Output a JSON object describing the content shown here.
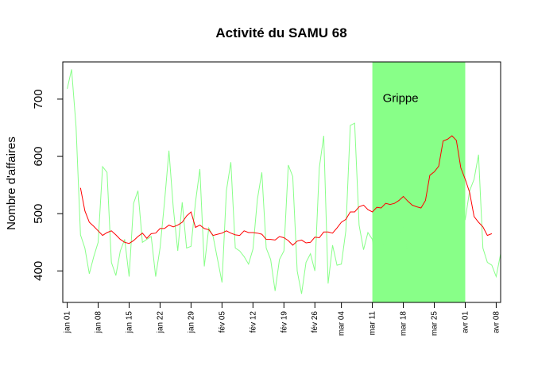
{
  "chart_data": {
    "type": "line",
    "title": "Activité du SAMU 68",
    "xlabel": "",
    "ylabel": "Nombre d'affaires",
    "ylim": [
      345,
      765
    ],
    "yticks": [
      400,
      500,
      600,
      700
    ],
    "x_start": "2009-12-31",
    "x_end": "2010-04-09",
    "x_ticks": [
      {
        "label": "jan 01",
        "date": "2010-01-01"
      },
      {
        "label": "jan 08",
        "date": "2010-01-08"
      },
      {
        "label": "jan 15",
        "date": "2010-01-15"
      },
      {
        "label": "jan 22",
        "date": "2010-01-22"
      },
      {
        "label": "jan 29",
        "date": "2010-01-29"
      },
      {
        "label": "fév 05",
        "date": "2010-02-05"
      },
      {
        "label": "fév 12",
        "date": "2010-02-12"
      },
      {
        "label": "fév 19",
        "date": "2010-02-19"
      },
      {
        "label": "fév 26",
        "date": "2010-02-26"
      },
      {
        "label": "mar 04",
        "date": "2010-03-04"
      },
      {
        "label": "mar 11",
        "date": "2010-03-11"
      },
      {
        "label": "mar 18",
        "date": "2010-03-18"
      },
      {
        "label": "mar 25",
        "date": "2010-03-25"
      },
      {
        "label": "avr 01",
        "date": "2010-04-01"
      },
      {
        "label": "avr 08",
        "date": "2010-04-08"
      }
    ],
    "highlight": {
      "label": "Grippe",
      "start": "2010-03-11",
      "end": "2010-04-01",
      "color": "#88ff88"
    },
    "series": [
      {
        "color": "#88ff88",
        "start": "2010-01-01",
        "values": [
          718,
          752,
          652,
          463,
          440,
          395,
          425,
          450,
          582,
          572,
          415,
          392,
          435,
          455,
          390,
          518,
          540,
          450,
          455,
          460,
          390,
          440,
          520,
          610,
          510,
          435,
          520,
          440,
          443,
          520,
          578,
          408,
          475,
          460,
          420,
          380,
          540,
          590,
          440,
          435,
          425,
          412,
          438,
          525,
          572,
          440,
          420,
          365,
          420,
          435,
          585,
          565,
          400,
          360,
          415,
          430,
          400,
          580,
          636,
          378,
          445,
          410,
          412,
          470,
          654,
          658,
          480,
          437,
          467,
          455,
          388,
          452,
          440,
          455,
          430,
          460,
          475,
          430,
          420,
          440,
          455,
          480,
          435,
          560,
          620,
          625,
          580,
          585,
          510,
          470,
          490,
          540,
          560,
          603,
          440,
          415,
          410,
          390,
          430
        ]
      },
      {
        "color": "#ff0000",
        "start": "2010-01-04",
        "values": [
          545,
          505,
          485,
          478,
          470,
          462,
          467,
          470,
          463,
          455,
          450,
          448,
          453,
          460,
          466,
          457,
          465,
          466,
          474,
          474,
          480,
          477,
          480,
          485,
          496,
          503,
          476,
          480,
          474,
          472,
          462,
          464,
          466,
          470,
          466,
          463,
          462,
          470,
          467,
          467,
          466,
          464,
          455,
          455,
          454,
          460,
          458,
          453,
          445,
          452,
          454,
          449,
          450,
          459,
          458,
          468,
          468,
          466,
          475,
          485,
          490,
          503,
          503,
          512,
          515,
          507,
          503,
          511,
          510,
          518,
          516,
          518,
          523,
          530,
          522,
          515,
          512,
          510,
          523,
          567,
          573,
          583,
          627,
          630,
          636,
          628,
          580,
          560,
          537,
          495,
          485,
          477,
          462,
          465
        ]
      }
    ]
  }
}
